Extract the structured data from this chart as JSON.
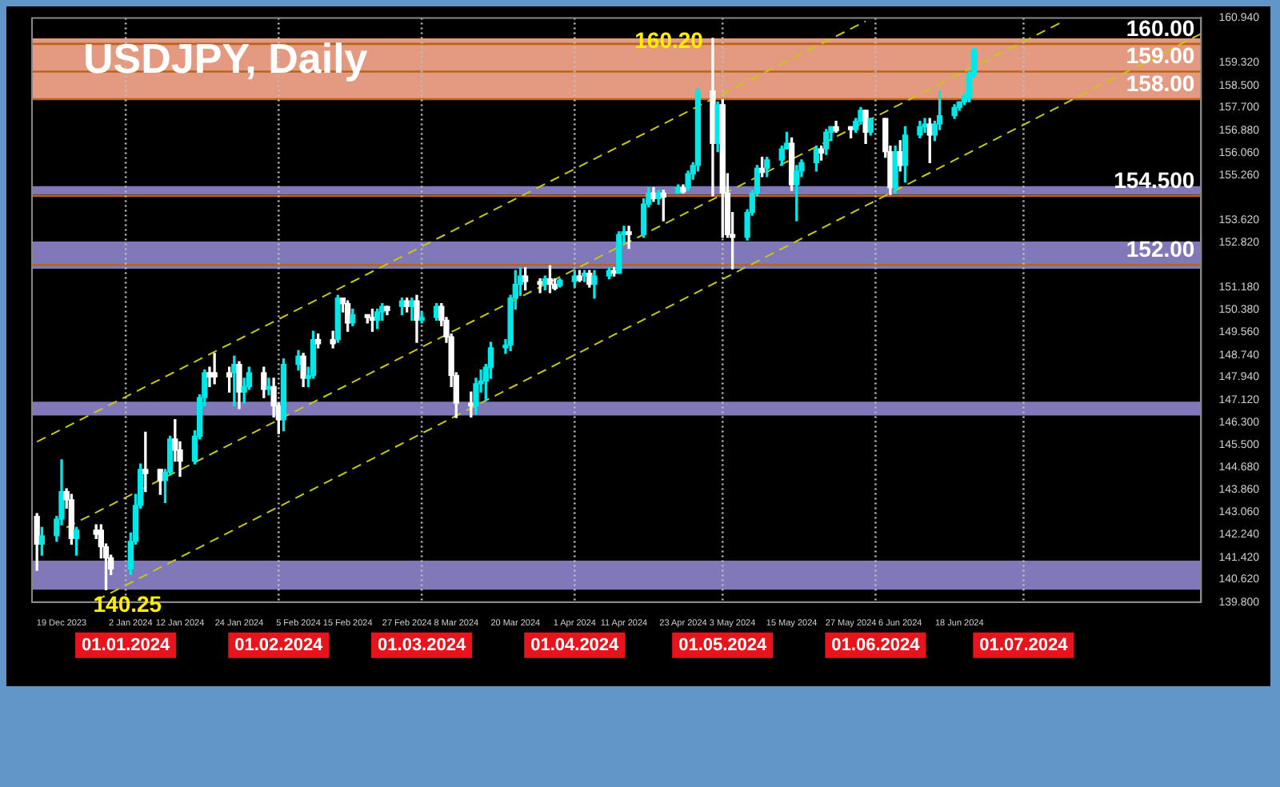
{
  "chart_data": {
    "type": "candlestick",
    "title": "USDJPY, Daily",
    "x": [
      "2023-12-14",
      "2023-12-15",
      "2023-12-18",
      "2023-12-19",
      "2023-12-20",
      "2023-12-21",
      "2023-12-22",
      "2023-12-26",
      "2023-12-27",
      "2023-12-28",
      "2023-12-29",
      "2024-01-02",
      "2024-01-03",
      "2024-01-04",
      "2024-01-05",
      "2024-01-08",
      "2024-01-09",
      "2024-01-10",
      "2024-01-11",
      "2024-01-12",
      "2024-01-15",
      "2024-01-16",
      "2024-01-17",
      "2024-01-18",
      "2024-01-19",
      "2024-01-22",
      "2024-01-23",
      "2024-01-24",
      "2024-01-25",
      "2024-01-26",
      "2024-01-29",
      "2024-01-30",
      "2024-01-31",
      "2024-02-01",
      "2024-02-02",
      "2024-02-05",
      "2024-02-06",
      "2024-02-07",
      "2024-02-08",
      "2024-02-09",
      "2024-02-12",
      "2024-02-13",
      "2024-02-14",
      "2024-02-15",
      "2024-02-16",
      "2024-02-19",
      "2024-02-20",
      "2024-02-21",
      "2024-02-22",
      "2024-02-23",
      "2024-02-26",
      "2024-02-27",
      "2024-02-28",
      "2024-02-29",
      "2024-03-01",
      "2024-03-04",
      "2024-03-05",
      "2024-03-06",
      "2024-03-07",
      "2024-03-08",
      "2024-03-11",
      "2024-03-12",
      "2024-03-13",
      "2024-03-14",
      "2024-03-15",
      "2024-03-18",
      "2024-03-19",
      "2024-03-20",
      "2024-03-21",
      "2024-03-22",
      "2024-03-25",
      "2024-03-26",
      "2024-03-27",
      "2024-03-28",
      "2024-03-29",
      "2024-04-01",
      "2024-04-02",
      "2024-04-03",
      "2024-04-04",
      "2024-04-05",
      "2024-04-08",
      "2024-04-09",
      "2024-04-10",
      "2024-04-11",
      "2024-04-12",
      "2024-04-15",
      "2024-04-16",
      "2024-04-17",
      "2024-04-18",
      "2024-04-19",
      "2024-04-22",
      "2024-04-23",
      "2024-04-24",
      "2024-04-25",
      "2024-04-26",
      "2024-04-29",
      "2024-04-30",
      "2024-05-01",
      "2024-05-02",
      "2024-05-03",
      "2024-05-06",
      "2024-05-07",
      "2024-05-08",
      "2024-05-09",
      "2024-05-10",
      "2024-05-13",
      "2024-05-14",
      "2024-05-15",
      "2024-05-16",
      "2024-05-17",
      "2024-05-20",
      "2024-05-21",
      "2024-05-22",
      "2024-05-23",
      "2024-05-24",
      "2024-05-27",
      "2024-05-28",
      "2024-05-29",
      "2024-05-30",
      "2024-05-31",
      "2024-06-03",
      "2024-06-04",
      "2024-06-05",
      "2024-06-06",
      "2024-06-07",
      "2024-06-10",
      "2024-06-11",
      "2024-06-12",
      "2024-06-13",
      "2024-06-14",
      "2024-06-17",
      "2024-06-18",
      "2024-06-19",
      "2024-06-20",
      "2024-06-21"
    ],
    "ohlc": [
      [
        142.9,
        143.0,
        140.95,
        141.9
      ],
      [
        141.9,
        142.5,
        141.5,
        142.2
      ],
      [
        142.2,
        142.9,
        142.0,
        142.8
      ],
      [
        142.8,
        144.95,
        142.6,
        143.8
      ],
      [
        143.8,
        143.9,
        143.2,
        143.5
      ],
      [
        143.5,
        143.7,
        141.9,
        142.1
      ],
      [
        142.1,
        142.5,
        141.5,
        142.4
      ],
      [
        142.4,
        142.6,
        142.1,
        142.25
      ],
      [
        142.4,
        142.6,
        141.4,
        141.8
      ],
      [
        141.8,
        141.9,
        140.25,
        141.4
      ],
      [
        141.4,
        141.5,
        140.8,
        141.0
      ],
      [
        141.0,
        142.3,
        140.8,
        142.0
      ],
      [
        142.0,
        143.7,
        141.9,
        143.3
      ],
      [
        143.3,
        144.8,
        143.2,
        144.6
      ],
      [
        144.6,
        145.95,
        143.8,
        144.45
      ],
      [
        144.6,
        144.6,
        143.7,
        144.2
      ],
      [
        144.2,
        144.6,
        143.4,
        144.5
      ],
      [
        144.5,
        145.8,
        144.4,
        145.7
      ],
      [
        145.7,
        146.4,
        144.9,
        145.3
      ],
      [
        145.3,
        145.6,
        144.35,
        144.9
      ],
      [
        144.9,
        146.0,
        144.8,
        145.8
      ],
      [
        145.8,
        147.3,
        145.7,
        147.2
      ],
      [
        147.2,
        148.2,
        146.9,
        148.1
      ],
      [
        148.1,
        148.3,
        147.6,
        147.95
      ],
      [
        148.1,
        148.8,
        147.7,
        147.95
      ],
      [
        148.1,
        148.3,
        147.4,
        147.95
      ],
      [
        148.1,
        148.7,
        146.9,
        148.4
      ],
      [
        148.4,
        148.5,
        146.8,
        147.4
      ],
      [
        147.4,
        147.9,
        147.0,
        147.6
      ],
      [
        147.6,
        148.3,
        147.5,
        148.1
      ],
      [
        148.1,
        148.3,
        147.2,
        147.5
      ],
      [
        147.5,
        147.9,
        147.3,
        147.6
      ],
      [
        147.6,
        147.9,
        146.5,
        146.9
      ],
      [
        146.9,
        147.0,
        145.9,
        146.4
      ],
      [
        146.4,
        148.6,
        146.0,
        148.4
      ],
      [
        148.4,
        148.9,
        148.2,
        148.7
      ],
      [
        148.7,
        148.8,
        147.6,
        147.9
      ],
      [
        147.9,
        148.3,
        147.6,
        148.0
      ],
      [
        148.0,
        149.6,
        147.9,
        149.3
      ],
      [
        149.3,
        149.5,
        149.0,
        149.15
      ],
      [
        149.3,
        149.6,
        149.0,
        149.15
      ],
      [
        149.3,
        150.9,
        149.2,
        150.8
      ],
      [
        150.8,
        150.8,
        150.3,
        150.6
      ],
      [
        150.6,
        150.7,
        149.6,
        149.9
      ],
      [
        149.9,
        150.4,
        149.8,
        150.2
      ],
      [
        150.2,
        150.2,
        149.9,
        150.1
      ],
      [
        150.1,
        150.4,
        149.6,
        150.0
      ],
      [
        150.0,
        150.4,
        149.7,
        150.3
      ],
      [
        150.3,
        150.6,
        150.0,
        150.5
      ],
      [
        150.5,
        150.5,
        150.2,
        150.35
      ],
      [
        150.5,
        150.8,
        150.2,
        150.7
      ],
      [
        150.7,
        150.8,
        150.3,
        150.5
      ],
      [
        150.5,
        150.8,
        150.0,
        150.7
      ],
      [
        150.7,
        150.9,
        149.2,
        150.0
      ],
      [
        150.0,
        150.3,
        149.9,
        150.1
      ],
      [
        150.1,
        150.6,
        150.0,
        150.5
      ],
      [
        150.5,
        150.6,
        149.8,
        150.0
      ],
      [
        150.0,
        150.1,
        149.2,
        149.4
      ],
      [
        149.4,
        149.5,
        147.6,
        148.0
      ],
      [
        148.0,
        148.1,
        146.48,
        147.0
      ],
      [
        147.0,
        147.4,
        146.5,
        146.9
      ],
      [
        146.9,
        147.9,
        146.6,
        147.7
      ],
      [
        147.7,
        148.2,
        147.4,
        147.8
      ],
      [
        147.8,
        148.4,
        147.1,
        148.3
      ],
      [
        148.3,
        149.2,
        147.9,
        149.0
      ],
      [
        149.0,
        149.3,
        148.8,
        149.1
      ],
      [
        149.1,
        150.9,
        148.9,
        150.8
      ],
      [
        150.8,
        151.8,
        150.4,
        151.3
      ],
      [
        151.3,
        151.9,
        150.9,
        151.6
      ],
      [
        151.6,
        151.9,
        151.1,
        151.4
      ],
      [
        151.4,
        151.5,
        151.0,
        151.3
      ],
      [
        151.3,
        151.6,
        151.1,
        151.5
      ],
      [
        151.5,
        151.97,
        151.0,
        151.3
      ],
      [
        151.3,
        151.5,
        151.1,
        151.15
      ],
      [
        151.25,
        151.5,
        151.2,
        151.45
      ],
      [
        151.4,
        151.8,
        151.2,
        151.6
      ],
      [
        151.6,
        151.8,
        151.4,
        151.45
      ],
      [
        151.6,
        151.8,
        151.4,
        151.7
      ],
      [
        151.7,
        151.8,
        151.2,
        151.3
      ],
      [
        151.3,
        151.8,
        150.8,
        151.6
      ],
      [
        151.6,
        151.9,
        151.5,
        151.8
      ],
      [
        151.8,
        151.9,
        151.6,
        151.7
      ],
      [
        151.7,
        153.2,
        151.7,
        153.1
      ],
      [
        153.1,
        153.4,
        152.8,
        153.2
      ],
      [
        153.2,
        153.4,
        152.6,
        153.1
      ],
      [
        153.1,
        154.4,
        153.0,
        154.2
      ],
      [
        154.2,
        154.8,
        154.1,
        154.6
      ],
      [
        154.6,
        154.8,
        154.3,
        154.4
      ],
      [
        154.4,
        154.7,
        154.2,
        154.6
      ],
      [
        154.6,
        154.7,
        153.6,
        154.45
      ],
      [
        154.6,
        154.9,
        154.6,
        154.8
      ],
      [
        154.8,
        154.9,
        154.6,
        154.65
      ],
      [
        154.8,
        155.4,
        154.7,
        155.3
      ],
      [
        155.3,
        155.7,
        155.1,
        155.6
      ],
      [
        155.6,
        158.4,
        155.4,
        158.3
      ],
      [
        158.3,
        160.2,
        154.5,
        156.4
      ],
      [
        156.4,
        157.9,
        156.1,
        157.8
      ],
      [
        157.8,
        157.99,
        153.0,
        154.6
      ],
      [
        154.6,
        155.3,
        153.0,
        153.1
      ],
      [
        153.1,
        153.9,
        151.86,
        153.0
      ],
      [
        153.0,
        154.0,
        152.9,
        153.9
      ],
      [
        153.9,
        154.7,
        153.8,
        154.6
      ],
      [
        154.6,
        155.6,
        154.5,
        155.5
      ],
      [
        155.5,
        155.9,
        155.2,
        155.35
      ],
      [
        155.5,
        155.9,
        155.2,
        155.8
      ],
      [
        155.8,
        156.3,
        155.6,
        156.2
      ],
      [
        156.2,
        156.8,
        156.2,
        156.4
      ],
      [
        156.4,
        156.6,
        154.7,
        154.9
      ],
      [
        154.9,
        155.6,
        153.6,
        155.4
      ],
      [
        155.4,
        155.8,
        155.2,
        155.7
      ],
      [
        155.7,
        156.3,
        155.4,
        156.2
      ],
      [
        156.2,
        156.3,
        155.8,
        156.05
      ],
      [
        156.2,
        156.9,
        156.0,
        156.8
      ],
      [
        156.8,
        157.0,
        156.5,
        157.0
      ],
      [
        157.0,
        157.2,
        156.8,
        156.85
      ],
      [
        157.0,
        157.0,
        156.6,
        156.9
      ],
      [
        156.9,
        157.3,
        156.8,
        157.2
      ],
      [
        157.2,
        157.7,
        157.1,
        157.6
      ],
      [
        157.6,
        157.6,
        156.4,
        156.8
      ],
      [
        156.8,
        157.3,
        156.7,
        157.3
      ],
      [
        157.3,
        157.3,
        155.9,
        156.1
      ],
      [
        156.1,
        156.3,
        154.55,
        154.8
      ],
      [
        154.8,
        156.3,
        154.6,
        156.1
      ],
      [
        156.1,
        156.5,
        155.4,
        155.6
      ],
      [
        155.6,
        157.0,
        155.0,
        156.7
      ],
      [
        156.7,
        157.2,
        156.6,
        157.0
      ],
      [
        157.0,
        157.3,
        156.8,
        157.1
      ],
      [
        157.1,
        157.3,
        155.7,
        156.7
      ],
      [
        156.7,
        157.2,
        156.5,
        157.1
      ],
      [
        157.1,
        158.3,
        156.9,
        157.4
      ],
      [
        157.4,
        157.8,
        157.3,
        157.7
      ],
      [
        157.7,
        157.9,
        157.6,
        157.9
      ],
      [
        157.9,
        158.2,
        157.8,
        158.1
      ],
      [
        158.1,
        159.0,
        157.9,
        158.9
      ],
      [
        158.9,
        159.85,
        158.8,
        159.8
      ]
    ],
    "colors": [
      "#ffffff",
      "#00e8e8",
      "#00e8e8",
      "#00e8e8",
      "#ffffff",
      "#ffffff",
      "#00e8e8",
      "#ffffff",
      "#ffffff",
      "#ffffff",
      "#ffffff",
      "#00e8e8",
      "#00e8e8",
      "#00e8e8",
      "#ffffff",
      "#ffffff",
      "#00e8e8",
      "#00e8e8",
      "#ffffff",
      "#ffffff",
      "#00e8e8",
      "#00e8e8",
      "#00e8e8",
      "#ffffff",
      "#ffffff",
      "#ffffff",
      "#00e8e8",
      "#ffffff",
      "#00e8e8",
      "#00e8e8",
      "#ffffff",
      "#00e8e8",
      "#ffffff",
      "#ffffff",
      "#00e8e8",
      "#00e8e8",
      "#ffffff",
      "#00e8e8",
      "#00e8e8",
      "#ffffff",
      "#ffffff",
      "#00e8e8",
      "#ffffff",
      "#ffffff",
      "#00e8e8",
      "#ffffff",
      "#ffffff",
      "#00e8e8",
      "#00e8e8",
      "#ffffff",
      "#00e8e8",
      "#ffffff",
      "#00e8e8",
      "#ffffff",
      "#00e8e8",
      "#00e8e8",
      "#ffffff",
      "#ffffff",
      "#ffffff",
      "#ffffff",
      "#ffffff",
      "#00e8e8",
      "#00e8e8",
      "#00e8e8",
      "#00e8e8",
      "#00e8e8",
      "#00e8e8",
      "#00e8e8",
      "#00e8e8",
      "#ffffff",
      "#ffffff",
      "#00e8e8",
      "#ffffff",
      "#ffffff",
      "#00e8e8",
      "#00e8e8",
      "#ffffff",
      "#00e8e8",
      "#ffffff",
      "#00e8e8",
      "#00e8e8",
      "#ffffff",
      "#00e8e8",
      "#00e8e8",
      "#ffffff",
      "#00e8e8",
      "#00e8e8",
      "#ffffff",
      "#00e8e8",
      "#ffffff",
      "#00e8e8",
      "#ffffff",
      "#00e8e8",
      "#00e8e8",
      "#00e8e8",
      "#ffffff",
      "#00e8e8",
      "#ffffff",
      "#ffffff",
      "#ffffff",
      "#00e8e8",
      "#00e8e8",
      "#00e8e8",
      "#ffffff",
      "#00e8e8",
      "#00e8e8",
      "#00e8e8",
      "#ffffff",
      "#00e8e8",
      "#00e8e8",
      "#00e8e8",
      "#ffffff",
      "#00e8e8",
      "#00e8e8",
      "#ffffff",
      "#ffffff",
      "#00e8e8",
      "#00e8e8",
      "#ffffff",
      "#00e8e8",
      "#ffffff",
      "#ffffff",
      "#00e8e8",
      "#ffffff",
      "#00e8e8",
      "#00e8e8",
      "#00e8e8",
      "#ffffff",
      "#00e8e8",
      "#00e8e8",
      "#00e8e8",
      "#00e8e8",
      "#00e8e8",
      "#00e8e8",
      "#00e8e8"
    ],
    "series": [
      {
        "type": "line",
        "color": "#c8c814",
        "line_style": "dashed",
        "x": [
          "2023-12-14",
          "2024-05-30"
        ],
        "values": [
          145.6,
          160.82
        ]
      },
      {
        "type": "line",
        "color": "#c8c814",
        "line_style": "dashed",
        "x": [
          "2023-12-20",
          "2024-07-09"
        ],
        "values": [
          142.5,
          160.81
        ]
      },
      {
        "type": "line",
        "color": "#c8c814",
        "line_style": "dashed",
        "x": [
          "2023-12-26",
          "2024-08-06"
        ],
        "values": [
          139.86,
          160.37
        ]
      }
    ],
    "xlim": [
      "2023-12-13",
      "2024-08-06"
    ],
    "xticks": [
      {
        "value": "2023-12-19",
        "label": "19 Dec 2023"
      },
      {
        "value": "2024-01-02",
        "label": "2 Jan 2024"
      },
      {
        "value": "2024-01-12",
        "label": "12 Jan 2024"
      },
      {
        "value": "2024-01-24",
        "label": "24 Jan 2024"
      },
      {
        "value": "2024-02-05",
        "label": "5 Feb 2024"
      },
      {
        "value": "2024-02-15",
        "label": "15 Feb 2024"
      },
      {
        "value": "2024-02-27",
        "label": "27 Feb 2024"
      },
      {
        "value": "2024-03-08",
        "label": "8 Mar 2024"
      },
      {
        "value": "2024-03-20",
        "label": "20 Mar 2024"
      },
      {
        "value": "2024-04-01",
        "label": "1 Apr 2024"
      },
      {
        "value": "2024-04-11",
        "label": "11 Apr 2024"
      },
      {
        "value": "2024-04-23",
        "label": "23 Apr 2024"
      },
      {
        "value": "2024-05-03",
        "label": "3 May 2024"
      },
      {
        "value": "2024-05-15",
        "label": "15 May 2024"
      },
      {
        "value": "2024-05-27",
        "label": "27 May 2024"
      },
      {
        "value": "2024-06-06",
        "label": "6 Jun 2024"
      },
      {
        "value": "2024-06-18",
        "label": "18 Jun 2024"
      }
    ],
    "ylim": [
      139.8,
      160.94
    ],
    "yticks": [
      {
        "value": 160.94,
        "label": "160.940"
      },
      {
        "value": 159.32,
        "label": "159.320"
      },
      {
        "value": 158.5,
        "label": "158.500"
      },
      {
        "value": 157.7,
        "label": "157.700"
      },
      {
        "value": 156.88,
        "label": "156.880"
      },
      {
        "value": 156.06,
        "label": "156.060"
      },
      {
        "value": 155.26,
        "label": "155.260"
      },
      {
        "value": 153.62,
        "label": "153.620"
      },
      {
        "value": 152.82,
        "label": "152.820"
      },
      {
        "value": 151.18,
        "label": "151.180"
      },
      {
        "value": 150.38,
        "label": "150.380"
      },
      {
        "value": 149.56,
        "label": "149.560"
      },
      {
        "value": 148.74,
        "label": "148.740"
      },
      {
        "value": 147.94,
        "label": "147.940"
      },
      {
        "value": 147.12,
        "label": "147.120"
      },
      {
        "value": 146.3,
        "label": "146.300"
      },
      {
        "value": 145.5,
        "label": "145.500"
      },
      {
        "value": 144.68,
        "label": "144.680"
      },
      {
        "value": 143.86,
        "label": "143.860"
      },
      {
        "value": 143.06,
        "label": "143.060"
      },
      {
        "value": 142.24,
        "label": "142.240"
      },
      {
        "value": 141.42,
        "label": "141.420"
      },
      {
        "value": 140.62,
        "label": "140.620"
      },
      {
        "value": 139.8,
        "label": "139.800"
      }
    ],
    "ref_lines": [
      {
        "axis": "y",
        "value": 160,
        "label": "160.00",
        "color": "#b8641e"
      },
      {
        "axis": "y",
        "value": 159,
        "label": "159.00",
        "color": "#b8641e"
      },
      {
        "axis": "y",
        "value": 158,
        "label": "158.00",
        "color": "#b8641e"
      },
      {
        "axis": "y",
        "value": 154.5,
        "label": "154.500",
        "color": "#b8641e"
      },
      {
        "axis": "y",
        "value": 152,
        "label": "152.00",
        "color": "#b8641e"
      },
      {
        "axis": "x",
        "value": "2024-01-01",
        "label": "01.01.2024",
        "color": "#bdbdbd",
        "line_style": "dotted"
      },
      {
        "axis": "x",
        "value": "2024-02-01",
        "label": "01.02.2024",
        "color": "#bdbdbd",
        "line_style": "dotted"
      },
      {
        "axis": "x",
        "value": "2024-03-01",
        "label": "01.03.2024",
        "color": "#bdbdbd",
        "line_style": "dotted"
      },
      {
        "axis": "x",
        "value": "2024-04-01",
        "label": "01.04.2024",
        "color": "#bdbdbd",
        "line_style": "dotted"
      },
      {
        "axis": "x",
        "value": "2024-05-01",
        "label": "01.05.2024",
        "color": "#bdbdbd",
        "line_style": "dotted"
      },
      {
        "axis": "x",
        "value": "2024-06-01",
        "label": "01.06.2024",
        "color": "#bdbdbd",
        "line_style": "dotted"
      },
      {
        "axis": "x",
        "value": "2024-07-01",
        "label": "01.07.2024",
        "color": "#bdbdbd",
        "line_style": "dotted"
      }
    ],
    "bands": [
      {
        "axis": "y",
        "from": 158,
        "to": 160.2,
        "color": "#e39a80"
      },
      {
        "axis": "y",
        "from": 154.55,
        "to": 154.85,
        "color": "#8078b8"
      },
      {
        "axis": "y",
        "from": 151.86,
        "to": 152.85,
        "color": "#8078b8"
      },
      {
        "axis": "y",
        "from": 146.55,
        "to": 147.05,
        "color": "#8078b8"
      },
      {
        "axis": "y",
        "from": 140.25,
        "to": 141.3,
        "color": "#8078b8"
      }
    ],
    "annotations": [
      {
        "text": "160.20",
        "x": "2024-04-29",
        "y": 160.2
      },
      {
        "text": "140.25",
        "x": "2023-12-28",
        "y": 140.25
      }
    ]
  }
}
